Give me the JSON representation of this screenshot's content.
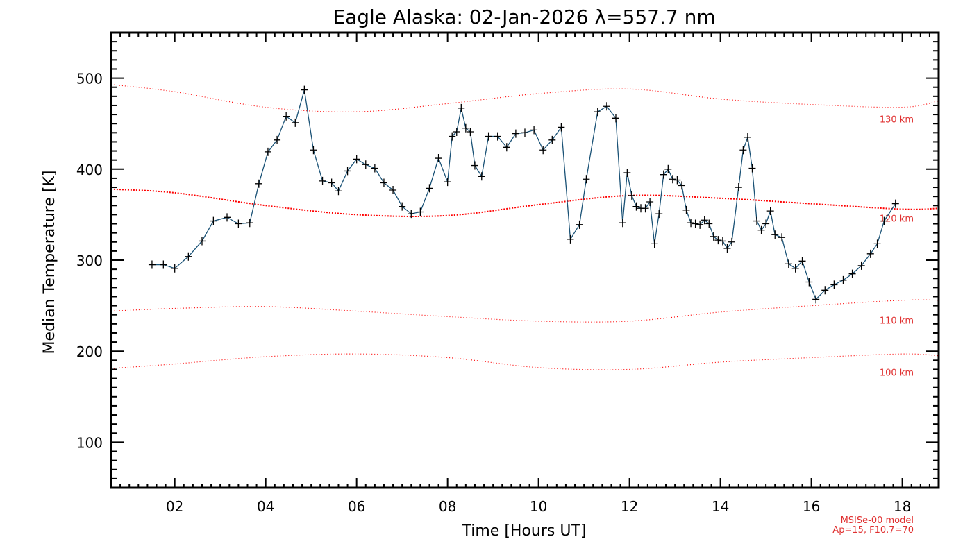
{
  "chart_data": {
    "type": "line",
    "title": "Eagle Alaska: 02-Jan-2026 λ=557.7 nm",
    "xlabel": "Time [Hours UT]",
    "ylabel": "Median Temperature [K]",
    "xlim": [
      0.6,
      18.8
    ],
    "ylim": [
      50,
      550
    ],
    "x_ticks": [
      2,
      4,
      6,
      8,
      10,
      12,
      14,
      16,
      18
    ],
    "x_tick_labels": [
      "02",
      "04",
      "06",
      "08",
      "10",
      "12",
      "14",
      "16",
      "18"
    ],
    "y_ticks": [
      100,
      200,
      300,
      400,
      500
    ],
    "y_tick_labels": [
      "100",
      "200",
      "300",
      "400",
      "500"
    ],
    "series": [
      {
        "name": "Median Temperature",
        "color": "#1a5276",
        "marker": "plus",
        "x": [
          1.5,
          1.75,
          2.0,
          2.3,
          2.6,
          2.85,
          3.15,
          3.4,
          3.65,
          3.85,
          4.05,
          4.25,
          4.45,
          4.65,
          4.85,
          5.05,
          5.25,
          5.45,
          5.6,
          5.8,
          6.0,
          6.2,
          6.4,
          6.6,
          6.8,
          7.0,
          7.2,
          7.4,
          7.6,
          7.8,
          8.0,
          8.1,
          8.2,
          8.3,
          8.4,
          8.5,
          8.6,
          8.75,
          8.9,
          9.1,
          9.3,
          9.5,
          9.7,
          9.9,
          10.1,
          10.3,
          10.5,
          10.7,
          10.9,
          11.05,
          11.3,
          11.5,
          11.7,
          11.85,
          11.95,
          12.05,
          12.15,
          12.25,
          12.35,
          12.45,
          12.55,
          12.65,
          12.75,
          12.85,
          12.95,
          13.05,
          13.15,
          13.25,
          13.35,
          13.45,
          13.55,
          13.65,
          13.75,
          13.85,
          13.95,
          14.05,
          14.15,
          14.25,
          14.4,
          14.5,
          14.6,
          14.7,
          14.8,
          14.9,
          15.0,
          15.1,
          15.2,
          15.35,
          15.5,
          15.65,
          15.8,
          15.95,
          16.1,
          16.3,
          16.5,
          16.7,
          16.9,
          17.1,
          17.3,
          17.45,
          17.6,
          17.85
        ],
        "y": [
          295,
          295,
          291,
          304,
          321,
          343,
          347,
          340,
          341,
          384,
          419,
          432,
          458,
          451,
          487,
          421,
          387,
          385,
          376,
          398,
          411,
          405,
          401,
          385,
          377,
          359,
          351,
          353,
          379,
          412,
          386,
          436,
          441,
          467,
          445,
          441,
          404,
          392,
          436,
          436,
          424,
          439,
          440,
          443,
          421,
          432,
          446,
          323,
          339,
          389,
          463,
          469,
          456,
          341,
          396,
          371,
          359,
          357,
          357,
          364,
          318,
          351,
          394,
          400,
          389,
          388,
          382,
          355,
          341,
          340,
          339,
          344,
          340,
          326,
          322,
          321,
          313,
          320,
          380,
          421,
          435,
          401,
          343,
          333,
          340,
          354,
          328,
          325,
          296,
          291,
          299,
          276,
          257,
          267,
          273,
          278,
          285,
          294,
          307,
          318,
          343,
          362
        ]
      }
    ],
    "model_curves": [
      {
        "label": "100 km",
        "color": "#ff0000",
        "x": [
          0.6,
          2.0,
          4.0,
          6.0,
          8.0,
          10.0,
          12.0,
          14.0,
          16.0,
          18.0,
          18.8
        ],
        "y": [
          181,
          186,
          194,
          197,
          193,
          182,
          180,
          188,
          193,
          197,
          195
        ]
      },
      {
        "label": "110 km",
        "color": "#ff0000",
        "x": [
          0.6,
          2.0,
          4.0,
          6.0,
          8.0,
          10.0,
          12.0,
          14.0,
          16.0,
          18.0,
          18.8
        ],
        "y": [
          244,
          247,
          249,
          244,
          238,
          233,
          233,
          243,
          250,
          256,
          256
        ]
      },
      {
        "label": "120 km",
        "color": "#ff0000",
        "x": [
          0.6,
          2.0,
          4.0,
          6.0,
          8.0,
          10.0,
          12.0,
          14.0,
          16.0,
          18.0,
          18.8
        ],
        "y": [
          378,
          374,
          360,
          350,
          349,
          361,
          371,
          368,
          362,
          356,
          357
        ]
      },
      {
        "label": "130 km",
        "color": "#ff0000",
        "x": [
          0.6,
          2.0,
          4.0,
          6.0,
          8.0,
          10.0,
          12.0,
          14.0,
          16.0,
          18.0,
          18.8
        ],
        "y": [
          493,
          485,
          468,
          463,
          472,
          483,
          488,
          477,
          471,
          468,
          475
        ]
      }
    ],
    "annotations": [
      "MSISe-00 model",
      "Ap=15, F10.7=70"
    ]
  }
}
